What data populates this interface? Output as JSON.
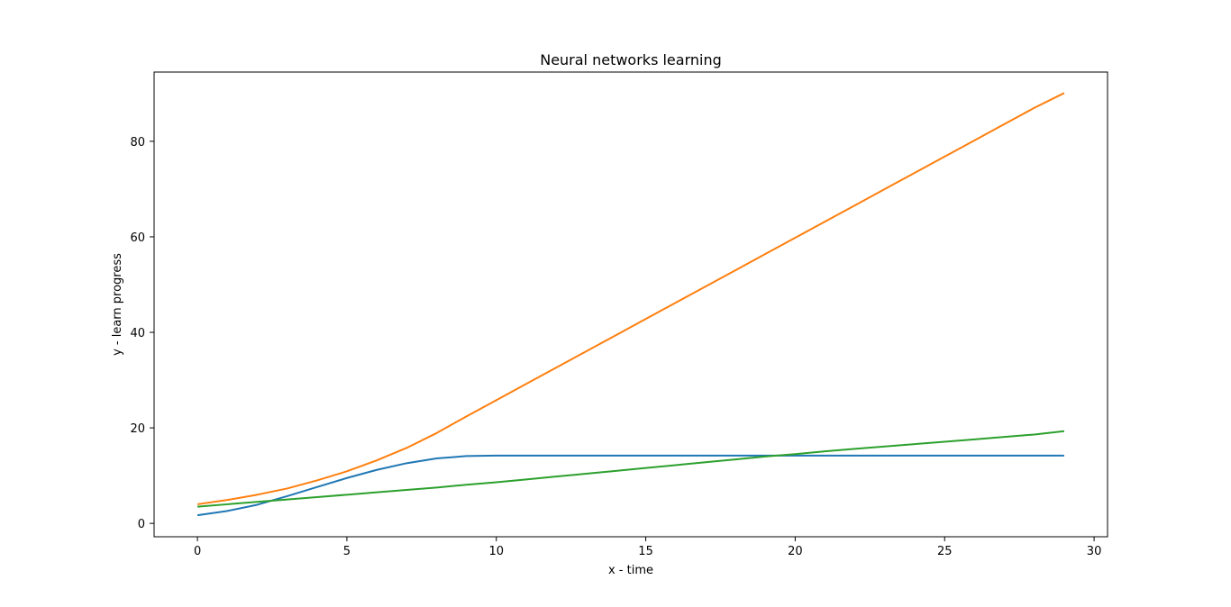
{
  "chart_data": {
    "type": "line",
    "title": "Neural networks learning",
    "xlabel": "x - time",
    "ylabel": "y - learn progress",
    "xlim": [
      -1.45,
      30.45
    ],
    "ylim": [
      -2.8,
      94.5
    ],
    "xticks": [
      0,
      5,
      10,
      15,
      20,
      25,
      30
    ],
    "yticks": [
      0,
      20,
      40,
      60,
      80
    ],
    "grid": false,
    "legend": "none",
    "x": [
      0,
      1,
      2,
      3,
      4,
      5,
      6,
      7,
      8,
      9,
      10,
      11,
      12,
      13,
      14,
      15,
      16,
      17,
      18,
      19,
      20,
      21,
      22,
      23,
      24,
      25,
      26,
      27,
      28,
      29
    ],
    "series": [
      {
        "color": "#1f77b4",
        "values": [
          1.7,
          2.6,
          3.9,
          5.7,
          7.6,
          9.5,
          11.2,
          12.6,
          13.6,
          14.1,
          14.2,
          14.2,
          14.2,
          14.2,
          14.2,
          14.2,
          14.2,
          14.2,
          14.2,
          14.2,
          14.2,
          14.2,
          14.2,
          14.2,
          14.2,
          14.2,
          14.2,
          14.2,
          14.2,
          14.2
        ]
      },
      {
        "color": "#ff7f0e",
        "values": [
          4.0,
          4.9,
          6.0,
          7.3,
          9.0,
          10.9,
          13.2,
          15.8,
          18.9,
          22.4,
          25.8,
          29.2,
          32.6,
          36.0,
          39.4,
          42.8,
          46.2,
          49.6,
          53.0,
          56.4,
          59.8,
          63.2,
          66.6,
          70.0,
          73.4,
          76.8,
          80.2,
          83.6,
          87.0,
          90.1
        ]
      },
      {
        "color": "#2ca02c",
        "values": [
          3.5,
          4.0,
          4.5,
          5.0,
          5.5,
          6.0,
          6.5,
          7.0,
          7.5,
          8.1,
          8.6,
          9.2,
          9.8,
          10.4,
          11.0,
          11.6,
          12.2,
          12.8,
          13.4,
          14.0,
          14.5,
          15.1,
          15.6,
          16.1,
          16.6,
          17.1,
          17.6,
          18.1,
          18.6,
          19.3
        ]
      }
    ]
  }
}
